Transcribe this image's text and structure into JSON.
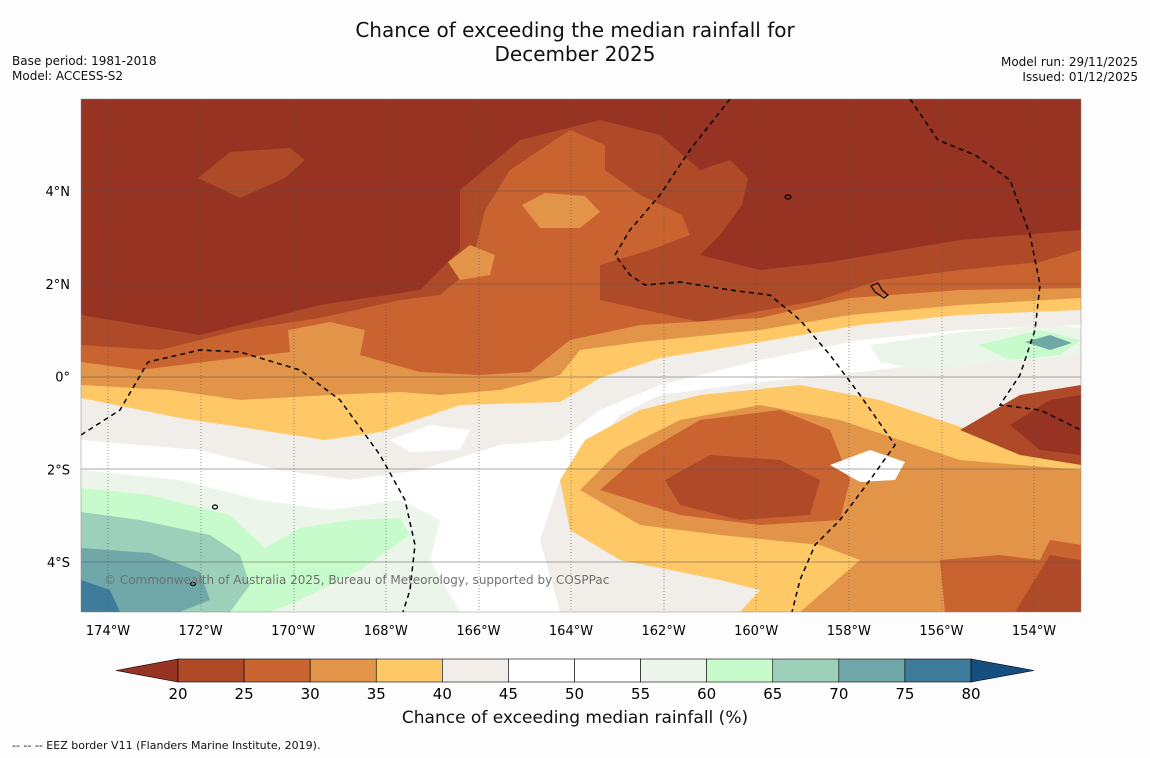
{
  "title_line1": "Chance of exceeding the median rainfall for",
  "title_line2": "December 2025",
  "base_period": "Base period: 1981-2018",
  "model": "Model: ACCESS-S2",
  "model_run": "Model run: 29/11/2025",
  "issued": "Issued: 01/12/2025",
  "copyright": "© Commonwealth of Australia 2025, Bureau of Meteorology, supported by COSPPac",
  "lon_labels": [
    "174°W",
    "172°W",
    "170°W",
    "168°W",
    "166°W",
    "164°W",
    "162°W",
    "160°W",
    "158°W",
    "156°W",
    "154°W"
  ],
  "lat_labels": [
    "4°N",
    "2°N",
    "0°",
    "2°S",
    "4°S"
  ],
  "colorbar": {
    "ticks": [
      "20",
      "25",
      "30",
      "35",
      "40",
      "45",
      "50",
      "55",
      "60",
      "65",
      "70",
      "75",
      "80"
    ],
    "colors": [
      "#ae4a28",
      "#c9632f",
      "#e29548",
      "#fec867",
      "#f1eeea",
      "#ffffff",
      "#ffffff",
      "#ebf5ea",
      "#c8fbcb",
      "#9dd0ba",
      "#70a8a9",
      "#3f7b9a"
    ],
    "low_color": "#973322",
    "high_color": "#144f80",
    "label": "Chance of exceeding median rainfall (%)"
  },
  "footer": "--  --  -- EEZ border V11 (Flanders Marine Institute, 2019)."
}
